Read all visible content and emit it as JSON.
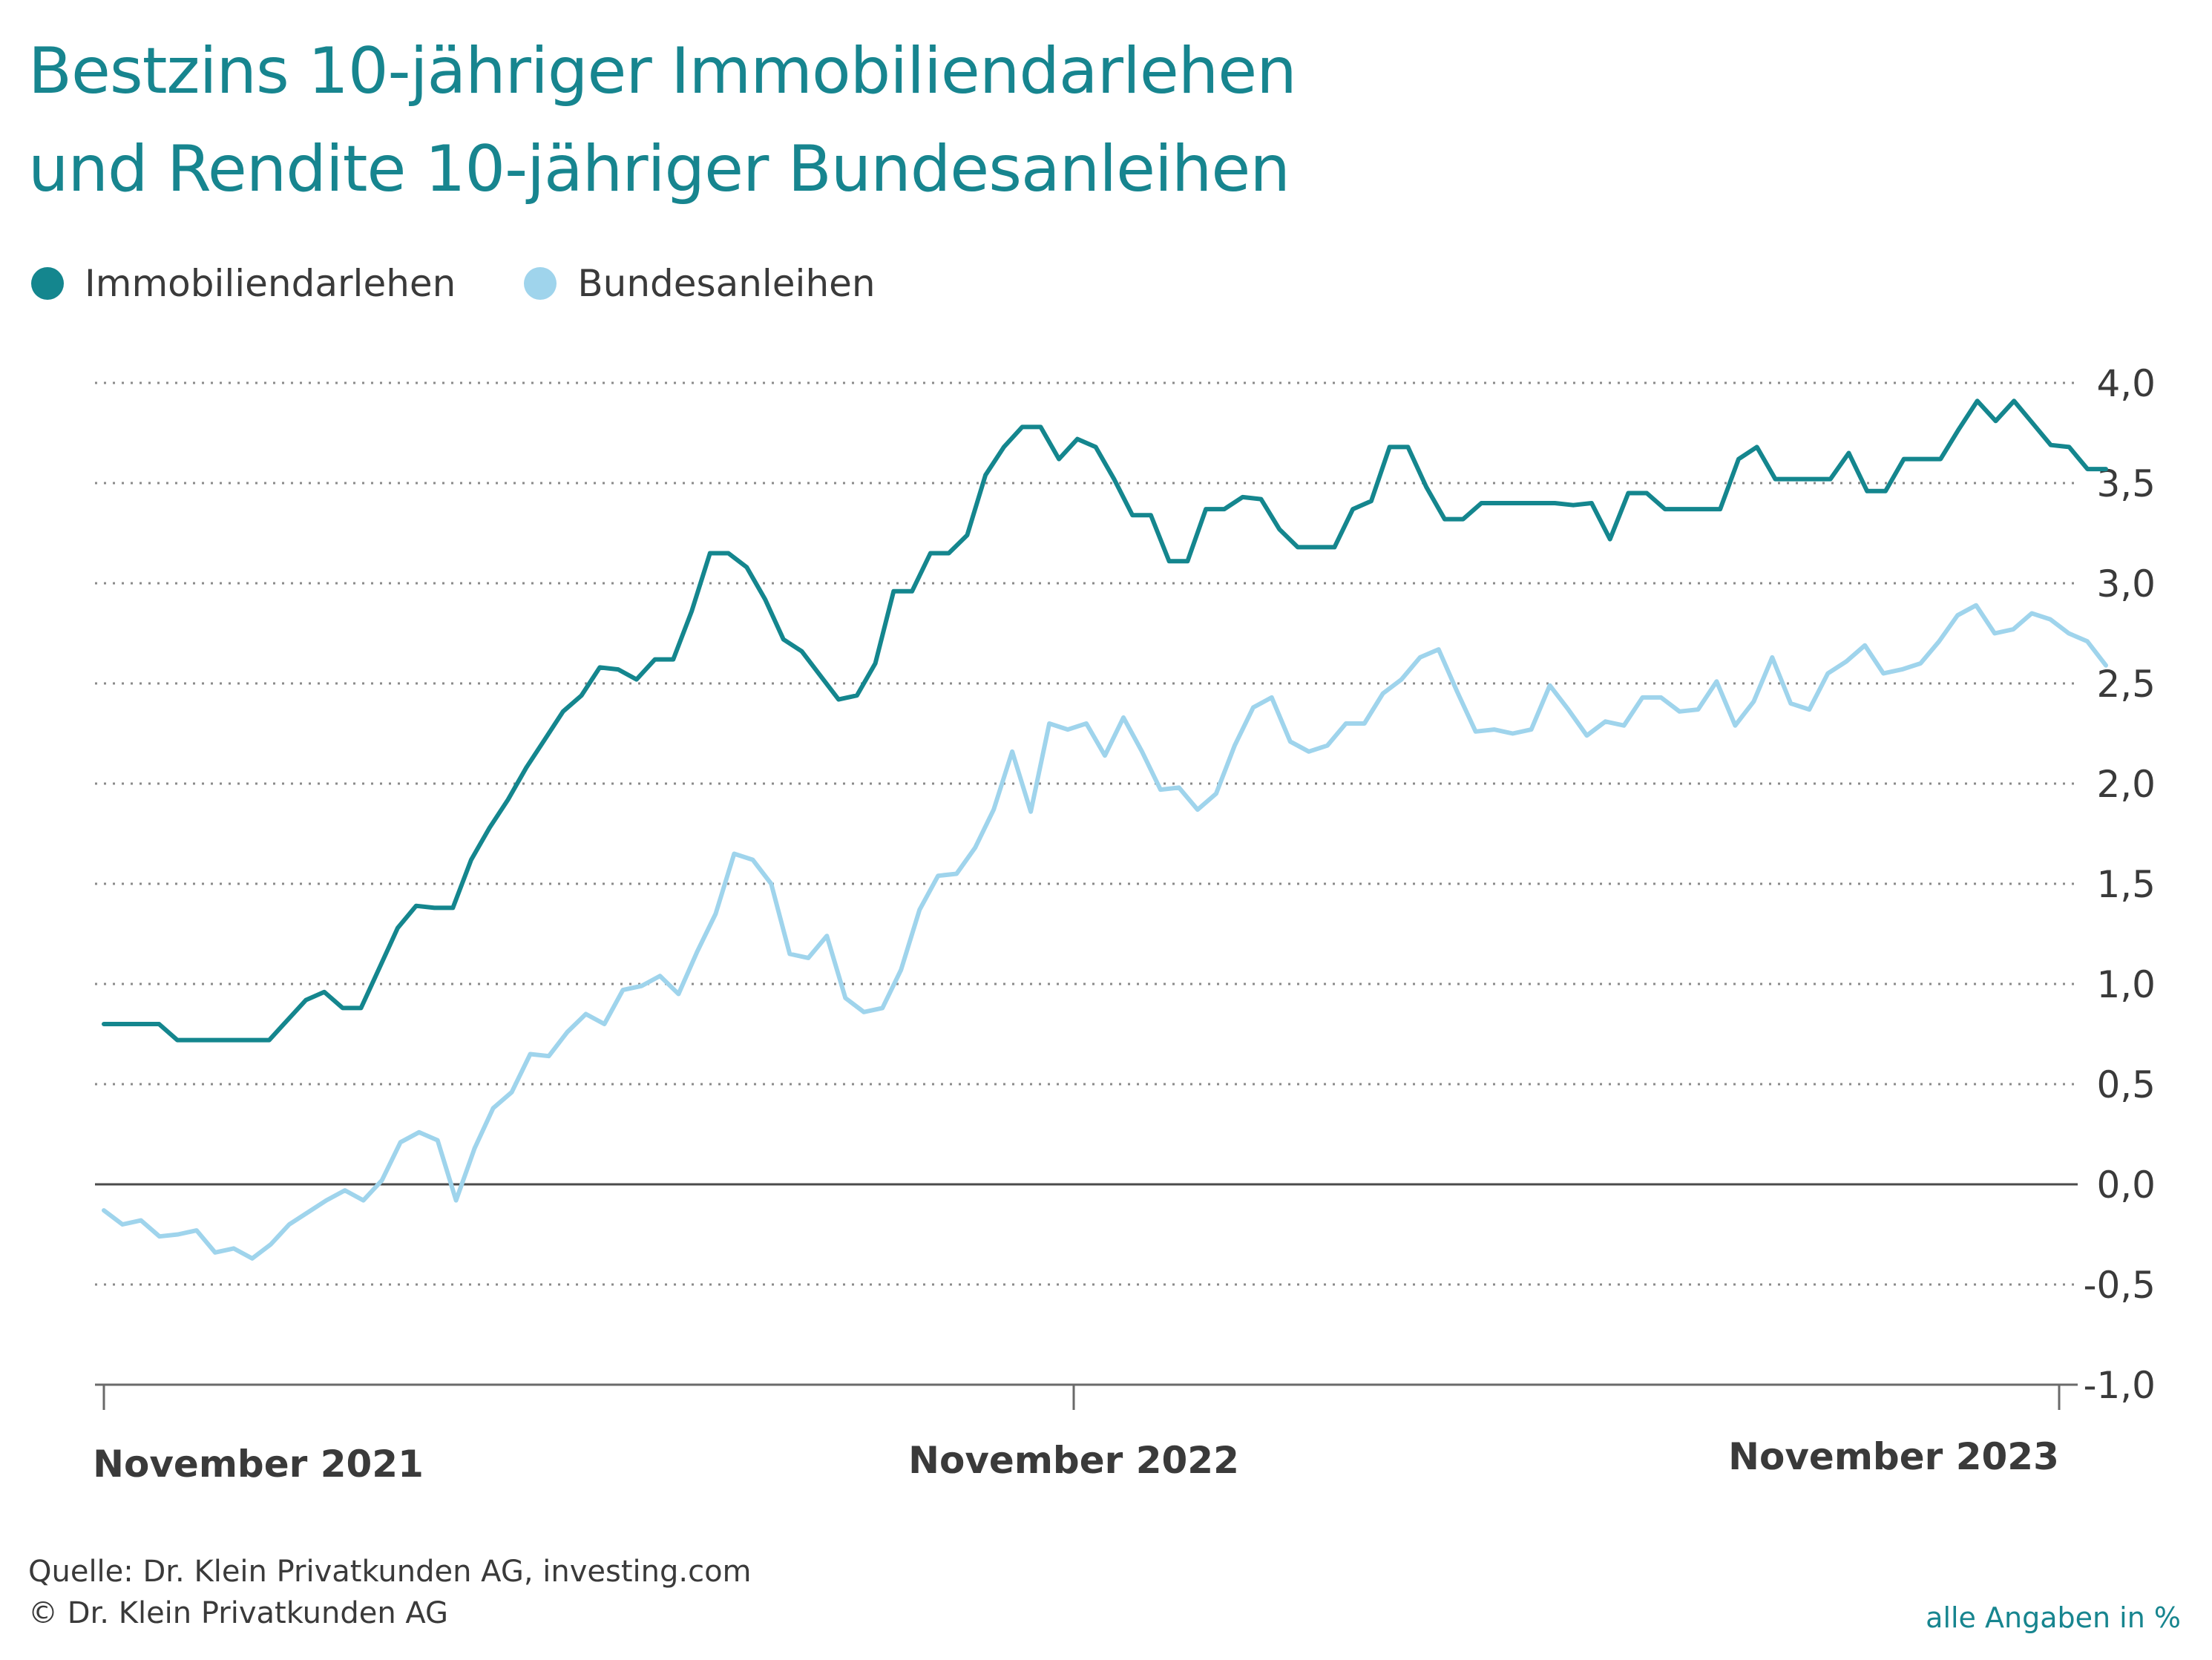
{
  "title_line1": "Bestzins 10-jähriger Immobiliendarlehen",
  "title_line2": "und Rendite 10-jähriger Bundesanleihen",
  "source": "Quelle: Dr. Klein Privatkunden AG, investing.com",
  "copyright": "© Dr. Klein Privatkunden AG",
  "unit_note": "alle Angaben in %",
  "colors": {
    "immobilien": "#14868e",
    "bund": "#9fd4ec",
    "title": "#17858f"
  },
  "chart_data": {
    "type": "line",
    "x_ticks": [
      "November 2021",
      "November 2022",
      "November 2023"
    ],
    "y_ticks": [
      "4,0",
      "3,5",
      "3,0",
      "2,5",
      "2,0",
      "1,5",
      "1,0",
      "0,5",
      "0,0",
      "-0,5",
      "-1,0"
    ],
    "ylim": [
      -1.0,
      4.0
    ],
    "grid": true,
    "legend_position": "top-left",
    "series": [
      {
        "name": "Immobiliendarlehen",
        "values": [
          0.8,
          0.8,
          0.8,
          0.8,
          0.72,
          0.72,
          0.72,
          0.72,
          0.72,
          0.72,
          0.82,
          0.92,
          0.96,
          0.88,
          0.88,
          1.08,
          1.28,
          1.39,
          1.38,
          1.38,
          1.62,
          1.78,
          1.92,
          2.08,
          2.22,
          2.36,
          2.44,
          2.58,
          2.57,
          2.52,
          2.62,
          2.62,
          2.86,
          3.15,
          3.15,
          3.08,
          2.92,
          2.72,
          2.66,
          2.54,
          2.42,
          2.44,
          2.6,
          2.96,
          2.96,
          3.15,
          3.15,
          3.24,
          3.54,
          3.68,
          3.78,
          3.78,
          3.62,
          3.72,
          3.68,
          3.52,
          3.34,
          3.34,
          3.11,
          3.11,
          3.37,
          3.37,
          3.43,
          3.42,
          3.27,
          3.18,
          3.18,
          3.18,
          3.37,
          3.41,
          3.68,
          3.68,
          3.48,
          3.32,
          3.32,
          3.4,
          3.4,
          3.4,
          3.4,
          3.4,
          3.39,
          3.4,
          3.22,
          3.45,
          3.45,
          3.37,
          3.37,
          3.37,
          3.37,
          3.62,
          3.68,
          3.52,
          3.52,
          3.52,
          3.52,
          3.65,
          3.46,
          3.46,
          3.62,
          3.62,
          3.62,
          3.77,
          3.91,
          3.81,
          3.91,
          3.8,
          3.69,
          3.68,
          3.57,
          3.57
        ]
      },
      {
        "name": "Bundesanleihen",
        "values": [
          -0.13,
          -0.2,
          -0.18,
          -0.26,
          -0.25,
          -0.23,
          -0.34,
          -0.32,
          -0.37,
          -0.3,
          -0.2,
          -0.14,
          -0.08,
          -0.03,
          -0.08,
          0.02,
          0.21,
          0.26,
          0.22,
          -0.08,
          0.18,
          0.38,
          0.46,
          0.65,
          0.64,
          0.76,
          0.85,
          0.8,
          0.97,
          0.99,
          1.04,
          0.95,
          1.16,
          1.35,
          1.65,
          1.62,
          1.5,
          1.15,
          1.13,
          1.24,
          0.93,
          0.86,
          0.88,
          1.07,
          1.37,
          1.54,
          1.55,
          1.68,
          1.87,
          2.16,
          1.86,
          2.3,
          2.27,
          2.3,
          2.14,
          2.33,
          2.16,
          1.97,
          1.98,
          1.87,
          1.95,
          2.19,
          2.38,
          2.43,
          2.21,
          2.16,
          2.19,
          2.3,
          2.3,
          2.45,
          2.52,
          2.63,
          2.67,
          2.46,
          2.26,
          2.27,
          2.25,
          2.27,
          2.49,
          2.37,
          2.24,
          2.31,
          2.29,
          2.43,
          2.43,
          2.36,
          2.37,
          2.51,
          2.29,
          2.41,
          2.63,
          2.4,
          2.37,
          2.55,
          2.61,
          2.69,
          2.55,
          2.57,
          2.6,
          2.71,
          2.84,
          2.89,
          2.75,
          2.77,
          2.85,
          2.82,
          2.75,
          2.71,
          2.59
        ]
      }
    ]
  }
}
